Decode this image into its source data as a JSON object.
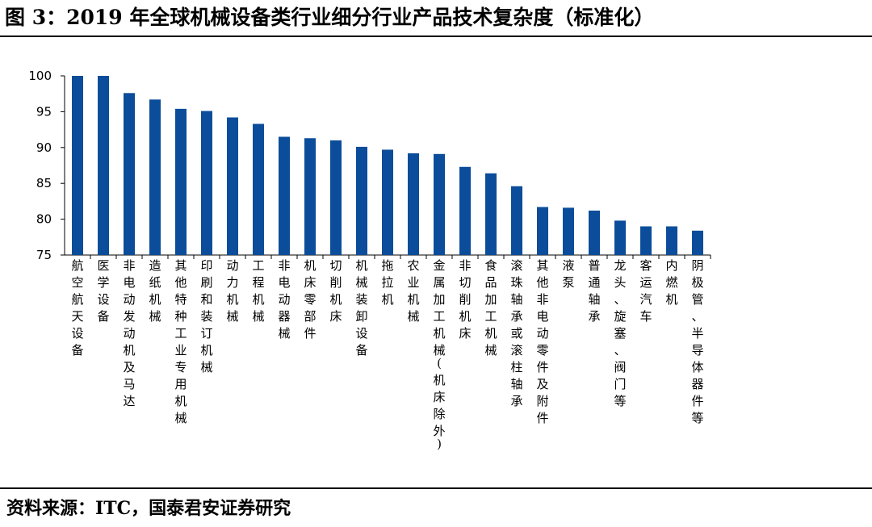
{
  "header": {
    "title": "图 3：2019 年全球机械设备类行业细分行业产品技术复杂度（标准化）"
  },
  "footer": {
    "source": "资料来源：ITC，国泰君安证券研究"
  },
  "colors": {
    "bar": "#0b4d9a",
    "axis": "#000000"
  },
  "chart_data": {
    "type": "bar",
    "title": "",
    "xlabel": "",
    "ylabel": "",
    "ylim": [
      75,
      100
    ],
    "yticks": [
      75,
      80,
      85,
      90,
      95,
      100
    ],
    "grid": false,
    "categories": [
      "航空航天设备",
      "医学设备",
      "非电动发动机及马达",
      "造纸机械",
      "其他特种工业专用机械",
      "印刷和装订机械",
      "动力机械",
      "工程机械",
      "非电动器械",
      "机床零部件",
      "切削机床",
      "机械装卸设备",
      "拖拉机",
      "农业机械",
      "金属加工机械(机床除外)",
      "非切削机床",
      "食品加工机械",
      "滚珠轴承或滚柱轴承",
      "其他非电动零件及附件",
      "液泵",
      "普通轴承",
      "龙头、旋塞、阀门等",
      "客运汽车",
      "内燃机",
      "阴极管、半导体器件等"
    ],
    "values": [
      100,
      100,
      97.6,
      96.7,
      95.4,
      95.1,
      94.2,
      93.3,
      91.5,
      91.3,
      91.0,
      90.1,
      89.7,
      89.2,
      89.1,
      87.3,
      86.4,
      84.6,
      81.7,
      81.6,
      81.2,
      79.8,
      79.0,
      79.0,
      78.4
    ]
  }
}
